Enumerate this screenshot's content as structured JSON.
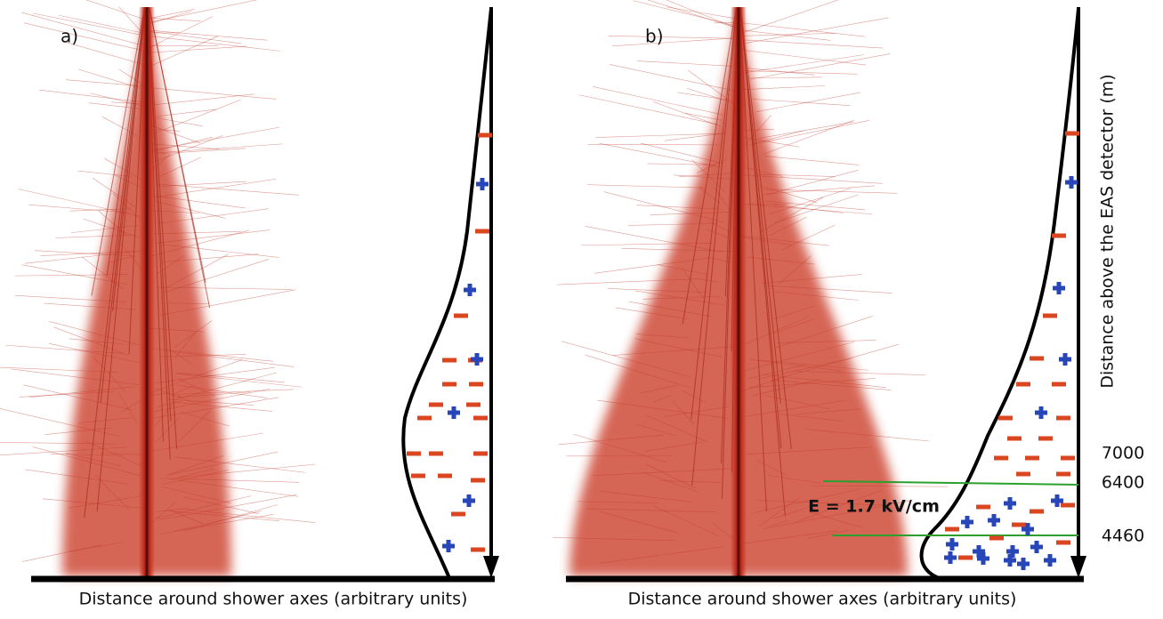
{
  "panels": [
    {
      "label": "a)",
      "x_axis_label": "Distance around shower axes (arbitrary units)"
    },
    {
      "label": "b)",
      "x_axis_label": "Distance around shower axes (arbitrary units)",
      "y_axis_label": "Distance above the EAS detector (m)",
      "height_labels": [
        "7000",
        "6400",
        "4460"
      ],
      "field_label": "E = 1.7 kV/cm"
    }
  ]
}
